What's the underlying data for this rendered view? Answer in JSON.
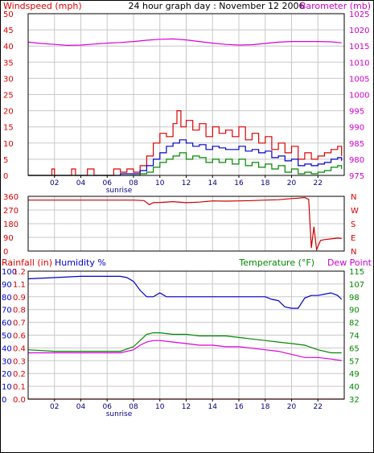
{
  "colors": {
    "background": "#ffffff",
    "grid": "#c8c8c8",
    "frame": "#000000",
    "wind": "#dd0000",
    "gust": "#dd0000",
    "wind_avg": "#0000cc",
    "wind_low": "#008800",
    "barometer": "#dd00dd",
    "direction": "#cc0000",
    "rain": "#dd0000",
    "humidity": "#0000cc",
    "temperature": "#008800",
    "dewpoint": "#dd00dd",
    "axis_left": "#dd0000",
    "axis_right": "#cc00cc",
    "axis_blue": "#0000cc",
    "axis_green": "#008800"
  },
  "chart_data": [
    {
      "type": "line",
      "title": "24 hour graph day : November 12 2006",
      "ylabel": "Windspeed (mph)",
      "y2label": "Barometer (mb)",
      "xlim": [
        0,
        24
      ],
      "ylim": [
        0,
        50
      ],
      "y2lim": [
        975,
        1025
      ],
      "x_ticks": [
        "02",
        "04",
        "06",
        "08",
        "10",
        "12",
        "14",
        "16",
        "18",
        "20",
        "22"
      ],
      "x_tick_values": [
        2,
        4,
        6,
        8,
        10,
        12,
        14,
        16,
        18,
        20,
        22
      ],
      "y_ticks": [
        "0",
        "5",
        "10",
        "15",
        "20",
        "25",
        "30",
        "35",
        "40",
        "45",
        "50"
      ],
      "y2_ticks": [
        "975",
        "980",
        "985",
        "990",
        "995",
        "1000",
        "1005",
        "1010",
        "1015",
        "1020",
        "1025"
      ],
      "annotation": "sunrise",
      "annotation_x": 6.9,
      "grid": true,
      "series": [
        {
          "key": "barometer",
          "axis": "right",
          "x": [
            0,
            1,
            2,
            3,
            4,
            5,
            6,
            7,
            8,
            9,
            10,
            11,
            12,
            13,
            14,
            15,
            16,
            17,
            18,
            19,
            20,
            21,
            22,
            23,
            23.8
          ],
          "values": [
            1016.2,
            1015.8,
            1015.5,
            1015.2,
            1015.3,
            1015.6,
            1015.9,
            1016.1,
            1016.4,
            1016.8,
            1017.1,
            1017.2,
            1016.9,
            1016.4,
            1015.9,
            1015.5,
            1015.3,
            1015.4,
            1015.8,
            1016.2,
            1016.4,
            1016.4,
            1016.4,
            1016.3,
            1016.0
          ]
        },
        {
          "key": "gust",
          "axis": "left",
          "x": [
            0,
            1.5,
            1.8,
            2,
            3,
            3.3,
            3.6,
            4,
            4.5,
            5,
            6,
            6.5,
            7,
            7.5,
            8,
            8.5,
            9,
            9.5,
            10,
            10.5,
            11,
            11.3,
            11.6,
            12,
            12.5,
            13,
            13.5,
            14,
            14.5,
            15,
            15.5,
            16,
            16.5,
            17,
            17.5,
            18,
            18.5,
            19,
            19.5,
            20,
            20.5,
            21,
            21.5,
            22,
            22.5,
            23,
            23.5,
            23.8
          ],
          "values": [
            0,
            0,
            2,
            0,
            0,
            2,
            0,
            0,
            2,
            0,
            0,
            2,
            1,
            2,
            1,
            3,
            6,
            10,
            13,
            12,
            16,
            20,
            15,
            17,
            14,
            16,
            12,
            15,
            13,
            14,
            12,
            15,
            11,
            13,
            10,
            12,
            8,
            10,
            7,
            9,
            5,
            7,
            5,
            6,
            7,
            8,
            9,
            6
          ]
        },
        {
          "key": "wind_avg",
          "axis": "left",
          "x": [
            0,
            6,
            7,
            8,
            8.5,
            9,
            9.5,
            10,
            10.5,
            11,
            11.5,
            12,
            12.5,
            13,
            13.5,
            14,
            14.5,
            15,
            15.5,
            16,
            16.5,
            17,
            17.5,
            18,
            18.5,
            19,
            19.5,
            20,
            20.5,
            21,
            21.5,
            22,
            22.5,
            23,
            23.5,
            23.8
          ],
          "values": [
            0,
            0,
            0.5,
            0.5,
            1.5,
            3,
            5,
            7,
            9,
            10,
            11,
            10,
            9,
            9.5,
            8,
            9,
            8.5,
            8,
            8,
            9,
            7.5,
            8,
            7,
            7.5,
            5.5,
            6,
            4.5,
            5,
            3,
            3.5,
            3,
            3.5,
            4,
            5,
            5.5,
            4.5
          ]
        },
        {
          "key": "wind_low",
          "axis": "left",
          "x": [
            0,
            7,
            8,
            8.5,
            9,
            9.5,
            10,
            10.5,
            11,
            11.5,
            12,
            12.5,
            13,
            13.5,
            14,
            14.5,
            15,
            15.5,
            16,
            16.5,
            17,
            17.5,
            18,
            18.5,
            19,
            19.5,
            20,
            20.5,
            21,
            21.5,
            22,
            22.5,
            23,
            23.5,
            23.8
          ],
          "values": [
            0,
            0,
            0,
            0.5,
            1,
            2.5,
            4,
            5,
            6,
            7,
            5,
            6,
            5.5,
            4,
            5,
            4,
            5,
            3.5,
            5,
            3,
            4,
            2.5,
            3.5,
            2,
            3,
            1,
            2,
            0.5,
            1,
            0.5,
            1,
            1.5,
            2.5,
            3,
            2
          ]
        }
      ]
    },
    {
      "type": "line",
      "y_ticks": [
        "360",
        "270",
        "180",
        "90",
        "0"
      ],
      "ylim": [
        0,
        360
      ],
      "y2_ticks": [
        "N",
        "W",
        "S",
        "E",
        "N"
      ],
      "xlim": [
        0,
        24
      ],
      "grid": true,
      "series": [
        {
          "key": "direction",
          "x": [
            0,
            2,
            4,
            6,
            8,
            8.8,
            9.2,
            9.5,
            10,
            11,
            12,
            13,
            14,
            15,
            16,
            17,
            18,
            19,
            20,
            20.5,
            21,
            21.3,
            21.5,
            21.7,
            21.9,
            22.2,
            22.5,
            23,
            23.5,
            23.8
          ],
          "values": [
            335,
            335,
            335,
            335,
            335,
            332,
            305,
            318,
            320,
            325,
            318,
            322,
            330,
            328,
            330,
            332,
            335,
            338,
            345,
            348,
            352,
            340,
            20,
            160,
            10,
            70,
            75,
            80,
            85,
            82
          ]
        }
      ]
    },
    {
      "type": "line",
      "ylabel": "Rainfall (in)",
      "y1b_label": "Humidity %",
      "y2label": "Temperature (°F)",
      "y2b_label": "Dew Point",
      "xlim": [
        0,
        24
      ],
      "x_ticks": [
        "02",
        "04",
        "06",
        "08",
        "10",
        "12",
        "14",
        "16",
        "18",
        "20",
        "22"
      ],
      "x_tick_values": [
        2,
        4,
        6,
        8,
        10,
        12,
        14,
        16,
        18,
        20,
        22
      ],
      "rain_ticks": [
        "1.2",
        "1.1",
        "0.9",
        "0.8",
        "0.7",
        "0.6",
        "0.4",
        "0.3",
        "0.2",
        "0.1",
        "0.0"
      ],
      "humidity_ticks": [
        "100",
        "90",
        "80",
        "70",
        "60",
        "50",
        "40",
        "30",
        "20",
        "10",
        "0"
      ],
      "temp_ticks": [
        "115",
        "107",
        "98",
        "90",
        "82",
        "74",
        "65",
        "57",
        "49",
        "40",
        "32"
      ],
      "temp_lim": [
        32,
        115
      ],
      "humidity_lim": [
        0,
        100
      ],
      "annotation": "sunrise",
      "annotation_x": 6.9,
      "grid": true,
      "series": [
        {
          "key": "rain",
          "axis": "rain",
          "x": [
            0,
            24
          ],
          "values": [
            0,
            0
          ]
        },
        {
          "key": "humidity",
          "axis": "humidity",
          "x": [
            0,
            2,
            4,
            6,
            7,
            7.5,
            8,
            8.5,
            9,
            9.5,
            10,
            10.5,
            11,
            12,
            14,
            16,
            17,
            18,
            18.5,
            19,
            19.5,
            20,
            20.5,
            21,
            21.5,
            22,
            22.5,
            23,
            23.5,
            23.8
          ],
          "values": [
            94,
            95,
            96,
            96,
            96,
            95,
            92,
            85,
            80,
            80,
            83,
            80,
            80,
            80,
            80,
            80,
            80,
            80,
            78,
            77,
            72,
            71,
            71,
            79,
            81,
            81,
            82,
            83,
            81,
            78
          ]
        },
        {
          "key": "temperature",
          "axis": "temp",
          "x": [
            0,
            2,
            4,
            6,
            7,
            8,
            8.5,
            9,
            9.5,
            10,
            11,
            12,
            13,
            14,
            15,
            16,
            17,
            18,
            19,
            20,
            21,
            22,
            23,
            23.8
          ],
          "values": [
            64,
            63,
            63,
            63,
            63,
            66,
            70,
            74,
            75,
            75,
            74,
            74,
            73,
            73,
            73,
            72,
            71,
            70,
            69,
            68,
            67,
            64,
            62,
            62
          ]
        },
        {
          "key": "dewpoint",
          "axis": "temp",
          "x": [
            0,
            2,
            4,
            6,
            7,
            8,
            8.5,
            9,
            9.5,
            10,
            11,
            12,
            13,
            14,
            15,
            16,
            17,
            18,
            19,
            20,
            21,
            22,
            23,
            23.8
          ],
          "values": [
            62,
            62,
            62,
            62,
            62,
            64,
            67,
            69,
            70,
            70,
            69,
            68,
            67,
            67,
            66,
            66,
            65,
            64,
            63,
            61,
            59,
            59,
            58,
            57
          ]
        }
      ]
    }
  ]
}
